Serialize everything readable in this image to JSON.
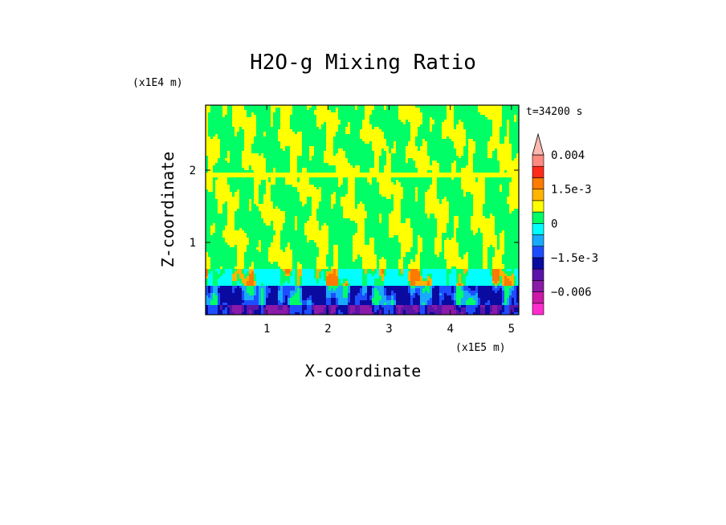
{
  "chart_data": {
    "type": "heatmap",
    "title": "H2O-g Mixing Ratio",
    "xlabel": "X-coordinate",
    "ylabel": "Z-coordinate",
    "x_scale_label": "(x1E5 m)",
    "y_scale_label": "(x1E4 m)",
    "time_label": "t=34200 s",
    "xlim": [
      0,
      5.12
    ],
    "ylim": [
      0,
      2.9
    ],
    "x_ticks": [
      {
        "value": 1,
        "label": "1"
      },
      {
        "value": 2,
        "label": "2"
      },
      {
        "value": 3,
        "label": "3"
      },
      {
        "value": 4,
        "label": "4"
      },
      {
        "value": 5,
        "label": "5"
      }
    ],
    "y_ticks": [
      {
        "value": 1,
        "label": "1"
      },
      {
        "value": 2,
        "label": "2"
      }
    ],
    "colorbar": {
      "levels": [
        -0.008,
        -0.006,
        -0.004,
        -0.0025,
        -0.0015,
        -0.001,
        -0.0005,
        0,
        0.0005,
        0.001,
        0.0015,
        0.002,
        0.003,
        0.004
      ],
      "colors": [
        "#ff2ccd",
        "#cc1aa6",
        "#8a1aa8",
        "#5a14a8",
        "#0a0aa0",
        "#1e4dff",
        "#18aaff",
        "#00ffff",
        "#00ff66",
        "#ffff00",
        "#ffb400",
        "#ff7a00",
        "#ff2a1a",
        "#ff8a80",
        "#ffb8b0"
      ],
      "labels": [
        {
          "value": 0.004,
          "label": "0.004"
        },
        {
          "value": 0.0015,
          "label": "1.5e-3"
        },
        {
          "value": 0,
          "label": "0"
        },
        {
          "value": -0.0015,
          "label": "−1.5e-3"
        },
        {
          "value": -0.006,
          "label": "−0.006"
        }
      ]
    },
    "field_regions": [
      {
        "z_range": [
          0,
          0.15
        ],
        "dominant": "purple/blue",
        "value_approx": -0.004
      },
      {
        "z_range": [
          0.15,
          0.4
        ],
        "dominant": "blue",
        "value_approx": -0.0015
      },
      {
        "z_range": [
          0.4,
          0.65
        ],
        "dominant": "cyan with orange/red plumes",
        "value_approx": 0
      },
      {
        "z_range": [
          0.65,
          2.9
        ],
        "dominant": "green/yellow",
        "value_approx": 0.0005
      },
      {
        "z_range": [
          1.93,
          2.0
        ],
        "dominant": "horizontal yellow band",
        "value_approx": 0.001
      }
    ]
  }
}
